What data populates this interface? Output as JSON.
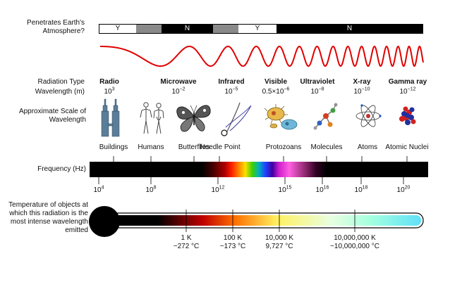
{
  "atmosphere": {
    "label": "Penetrates Earth's Atmosphere?",
    "segments": [
      {
        "text": "Y",
        "color": "#ffffff"
      },
      {
        "text": "",
        "color": "#8a8a8a"
      },
      {
        "text": "N",
        "color": "#000000"
      },
      {
        "text": "",
        "color": "#8a8a8a"
      },
      {
        "text": "Y",
        "color": "#ffffff"
      },
      {
        "text": "N",
        "color": "#000000"
      }
    ]
  },
  "wave_color": "#e00000",
  "radiation_type_label": "Radiation Type",
  "wavelength_label": "Wavelength (m)",
  "scale_label": "Approximate Scale of Wavelength",
  "types": [
    {
      "name": "Radio",
      "wavelength": "10",
      "exp": "3"
    },
    {
      "name": "Microwave",
      "wavelength": "10",
      "exp": "−2"
    },
    {
      "name": "Infrared",
      "wavelength": "10",
      "exp": "−5"
    },
    {
      "name": "Visible",
      "wavelength": "0.5×10",
      "exp": "−6"
    },
    {
      "name": "Ultraviolet",
      "wavelength": "10",
      "exp": "−8"
    },
    {
      "name": "X-ray",
      "wavelength": "10",
      "exp": "−10"
    },
    {
      "name": "Gamma ray",
      "wavelength": "10",
      "exp": "−12"
    }
  ],
  "scale_objects": [
    {
      "name": "Buildings",
      "icon": "buildings-icon"
    },
    {
      "name": "Humans",
      "icon": "humans-icon"
    },
    {
      "name": "Butterflies",
      "icon": "butterfly-icon"
    },
    {
      "name": "Needle Point",
      "icon": "needle-icon"
    },
    {
      "name": "Protozoans",
      "icon": "protozoan-icon"
    },
    {
      "name": "Molecules",
      "icon": "molecule-icon"
    },
    {
      "name": "Atoms",
      "icon": "atom-icon"
    },
    {
      "name": "Atomic Nuclei",
      "icon": "nucleus-icon"
    }
  ],
  "frequency": {
    "label": "Frequency (Hz)",
    "ticks": [
      {
        "base": "10",
        "exp": "4"
      },
      {
        "base": "10",
        "exp": "8"
      },
      {
        "base": "10",
        "exp": "12"
      },
      {
        "base": "10",
        "exp": "15"
      },
      {
        "base": "10",
        "exp": "16"
      },
      {
        "base": "10",
        "exp": "18"
      },
      {
        "base": "10",
        "exp": "20"
      }
    ]
  },
  "temperature": {
    "label": "Temperature of objects at which this radiation is the most intense wavelength emitted",
    "ticks": [
      {
        "kelvin": "1 K",
        "celsius": "−272 °C"
      },
      {
        "kelvin": "100 K",
        "celsius": "−173 °C"
      },
      {
        "kelvin": "10,000 K",
        "celsius": "9,727 °C"
      },
      {
        "kelvin": "10,000,000 K",
        "celsius": "~10,000,000 °C"
      }
    ]
  }
}
